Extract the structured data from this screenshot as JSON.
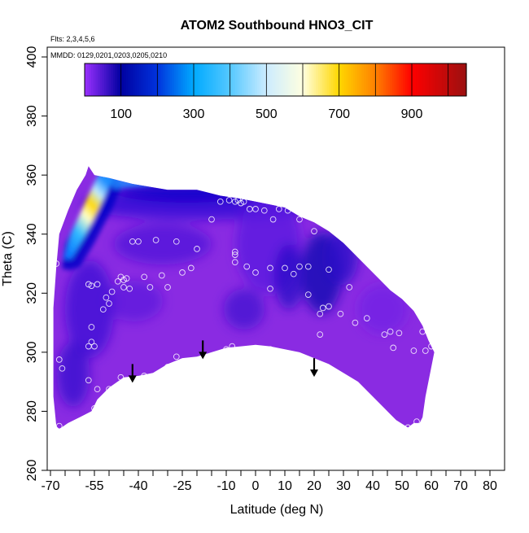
{
  "chart_data": {
    "type": "heatmap",
    "title": "ATOM2 Southbound HNO3_CIT",
    "flights_note": "Flts: 2,3,4,5,6",
    "dates_note": "MMDD: 0129,0201,0203,0205,0210",
    "xlabel": "Latitude (deg N)",
    "ylabel": "Theta (C)",
    "xlim": [
      -70,
      80
    ],
    "ylim": [
      260,
      400
    ],
    "x_ticks": [
      -70,
      -65,
      -60,
      -55,
      -50,
      -45,
      -40,
      -35,
      -30,
      -25,
      -20,
      -15,
      -10,
      -5,
      0,
      5,
      10,
      15,
      20,
      25,
      30,
      35,
      40,
      45,
      50,
      55,
      60,
      65,
      70,
      75,
      80
    ],
    "x_tick_labels": [
      "-70",
      "",
      "",
      "-55",
      "",
      "",
      "-40",
      "",
      "",
      "-25",
      "",
      "",
      "-10",
      "",
      "0",
      "",
      "10",
      "",
      "20",
      "",
      "30",
      "",
      "40",
      "",
      "50",
      "",
      "60",
      "",
      "70",
      "",
      "80"
    ],
    "y_ticks": [
      260,
      280,
      300,
      320,
      340,
      360,
      380,
      400
    ],
    "y_tick_labels": [
      "260",
      "280",
      "300",
      "320",
      "340",
      "360",
      "380",
      "400"
    ],
    "colorbar": {
      "range": [
        0,
        1050
      ],
      "labels": [
        "100",
        "300",
        "500",
        "700",
        "900"
      ],
      "label_values": [
        100,
        300,
        500,
        700,
        900
      ],
      "boundaries": [
        100,
        200,
        300,
        400,
        500,
        600,
        700,
        800,
        900,
        1000
      ],
      "stops": [
        {
          "v": 0,
          "c": "#9b30ff"
        },
        {
          "v": 100,
          "c": "#0000a0"
        },
        {
          "v": 200,
          "c": "#0033dd"
        },
        {
          "v": 300,
          "c": "#00aaff"
        },
        {
          "v": 400,
          "c": "#55c8ff"
        },
        {
          "v": 500,
          "c": "#ccecff"
        },
        {
          "v": 600,
          "c": "#ffffe0"
        },
        {
          "v": 700,
          "c": "#ffd700"
        },
        {
          "v": 800,
          "c": "#ff8000"
        },
        {
          "v": 900,
          "c": "#ff0000"
        },
        {
          "v": 1050,
          "c": "#9b1010"
        }
      ]
    },
    "arrows": [
      {
        "lat": -42,
        "theta": 296
      },
      {
        "lat": -18,
        "theta": 304
      },
      {
        "lat": 20,
        "theta": 298
      }
    ],
    "observations": [
      {
        "lat": -67,
        "theta": 297.5
      },
      {
        "lat": -66,
        "theta": 294.5
      },
      {
        "lat": -67,
        "theta": 275
      },
      {
        "lat": -68,
        "theta": 330
      },
      {
        "lat": -57,
        "theta": 323
      },
      {
        "lat": -56,
        "theta": 322.5
      },
      {
        "lat": -54,
        "theta": 323
      },
      {
        "lat": -51,
        "theta": 318.5
      },
      {
        "lat": -52,
        "theta": 314.5
      },
      {
        "lat": -50,
        "theta": 316.5
      },
      {
        "lat": -49,
        "theta": 320.5
      },
      {
        "lat": -47,
        "theta": 324
      },
      {
        "lat": -46,
        "theta": 325.5
      },
      {
        "lat": -45,
        "theta": 322
      },
      {
        "lat": -45,
        "theta": 324.5
      },
      {
        "lat": -44,
        "theta": 325
      },
      {
        "lat": -43,
        "theta": 321.5
      },
      {
        "lat": -42,
        "theta": 337.5
      },
      {
        "lat": -40,
        "theta": 337.5
      },
      {
        "lat": -38,
        "theta": 325.5
      },
      {
        "lat": -36,
        "theta": 322
      },
      {
        "lat": -34,
        "theta": 338
      },
      {
        "lat": -32,
        "theta": 326
      },
      {
        "lat": -30,
        "theta": 322
      },
      {
        "lat": -27,
        "theta": 337.5
      },
      {
        "lat": -25,
        "theta": 327
      },
      {
        "lat": -22,
        "theta": 328.5
      },
      {
        "lat": -20,
        "theta": 335
      },
      {
        "lat": -15,
        "theta": 345
      },
      {
        "lat": -12,
        "theta": 351
      },
      {
        "lat": -9,
        "theta": 351.5
      },
      {
        "lat": -7,
        "theta": 351
      },
      {
        "lat": -6,
        "theta": 351.5
      },
      {
        "lat": -5,
        "theta": 350.5
      },
      {
        "lat": -4,
        "theta": 351
      },
      {
        "lat": -2,
        "theta": 348.5
      },
      {
        "lat": 0,
        "theta": 348.5
      },
      {
        "lat": 3,
        "theta": 348
      },
      {
        "lat": 6,
        "theta": 345
      },
      {
        "lat": 8,
        "theta": 348.5
      },
      {
        "lat": 11,
        "theta": 348
      },
      {
        "lat": 15,
        "theta": 345
      },
      {
        "lat": 20,
        "theta": 341
      },
      {
        "lat": -7,
        "theta": 334
      },
      {
        "lat": -7,
        "theta": 333
      },
      {
        "lat": -7,
        "theta": 330.5
      },
      {
        "lat": -3,
        "theta": 329
      },
      {
        "lat": 0,
        "theta": 327
      },
      {
        "lat": 5,
        "theta": 328.5
      },
      {
        "lat": 10,
        "theta": 328.5
      },
      {
        "lat": 13,
        "theta": 326.5
      },
      {
        "lat": 15,
        "theta": 329
      },
      {
        "lat": 18,
        "theta": 329
      },
      {
        "lat": 25,
        "theta": 328
      },
      {
        "lat": 5,
        "theta": 321.5
      },
      {
        "lat": 18,
        "theta": 319.5
      },
      {
        "lat": 22,
        "theta": 313
      },
      {
        "lat": 23,
        "theta": 315
      },
      {
        "lat": 25,
        "theta": 315.5
      },
      {
        "lat": 29,
        "theta": 313
      },
      {
        "lat": 34,
        "theta": 310
      },
      {
        "lat": 38,
        "theta": 311.5
      },
      {
        "lat": 32,
        "theta": 322
      },
      {
        "lat": 22,
        "theta": 306
      },
      {
        "lat": 44,
        "theta": 306
      },
      {
        "lat": 46,
        "theta": 307
      },
      {
        "lat": 47,
        "theta": 301.5
      },
      {
        "lat": 49,
        "theta": 306.5
      },
      {
        "lat": 54,
        "theta": 300.5
      },
      {
        "lat": 57,
        "theta": 307
      },
      {
        "lat": 58,
        "theta": 300.5
      },
      {
        "lat": 56,
        "theta": 313
      },
      {
        "lat": 60,
        "theta": 302
      },
      {
        "lat": -56,
        "theta": 303.5
      },
      {
        "lat": -55,
        "theta": 302
      },
      {
        "lat": -56,
        "theta": 308.5
      },
      {
        "lat": -57,
        "theta": 290.5
      },
      {
        "lat": -54,
        "theta": 287.5
      },
      {
        "lat": -53,
        "theta": 283
      },
      {
        "lat": -55,
        "theta": 281
      },
      {
        "lat": -50,
        "theta": 287.5
      },
      {
        "lat": -46,
        "theta": 291.5
      },
      {
        "lat": -38,
        "theta": 292
      },
      {
        "lat": -30,
        "theta": 295
      },
      {
        "lat": -27,
        "theta": 298.5
      },
      {
        "lat": -10,
        "theta": 301
      },
      {
        "lat": -8,
        "theta": 302
      },
      {
        "lat": 5,
        "theta": 301
      },
      {
        "lat": 12,
        "theta": 299
      },
      {
        "lat": 21,
        "theta": 293.5
      },
      {
        "lat": 24,
        "theta": 291.5
      },
      {
        "lat": 30,
        "theta": 286.5
      },
      {
        "lat": 40,
        "theta": 282
      },
      {
        "lat": 45,
        "theta": 277.5
      },
      {
        "lat": 52,
        "theta": 274.5
      },
      {
        "lat": 55,
        "theta": 276.5
      },
      {
        "lat": -57,
        "theta": 302
      }
    ],
    "field_regions": [
      {
        "name": "high-latitude-stratospheric-tongue",
        "lat": [
          -67,
          -55
        ],
        "theta": [
          325,
          362
        ],
        "peak_value": 650
      },
      {
        "name": "tropical-minimum",
        "lat": [
          -15,
          20
        ],
        "theta": [
          300,
          345
        ],
        "peak_value": 60
      },
      {
        "name": "background",
        "lat": [
          -68,
          60
        ],
        "theta": [
          274,
          352
        ],
        "peak_value": 40
      }
    ]
  }
}
